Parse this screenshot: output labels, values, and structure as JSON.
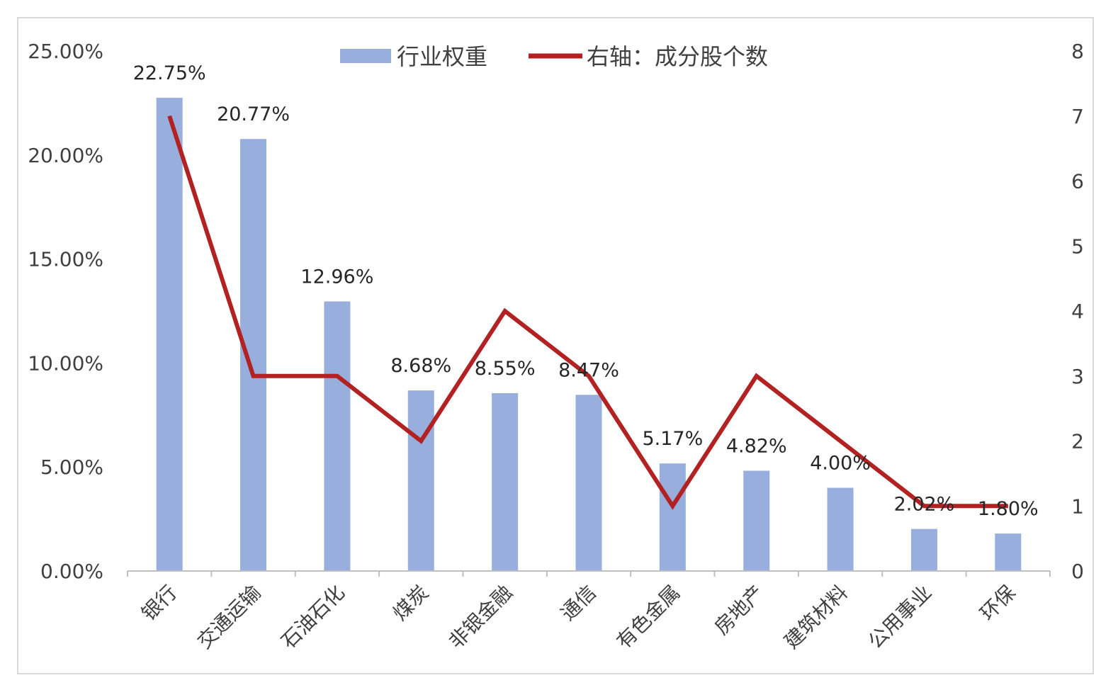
{
  "chart_data": {
    "type": "bar",
    "categories": [
      "银行",
      "交通运输",
      "石油石化",
      "煤炭",
      "非银金融",
      "通信",
      "有色金属",
      "房地产",
      "建筑材料",
      "公用事业",
      "环保"
    ],
    "series": [
      {
        "name": "行业权重",
        "type": "bar",
        "axis": "left",
        "color": "#98aedd",
        "values": [
          22.75,
          20.77,
          12.96,
          8.68,
          8.55,
          8.47,
          5.17,
          4.82,
          4.0,
          2.02,
          1.8
        ],
        "value_labels": [
          "22.75%",
          "20.77%",
          "12.96%",
          "8.68%",
          "8.55%",
          "8.47%",
          "5.17%",
          "4.82%",
          "4.00%",
          "2.02%",
          "1.80%"
        ]
      },
      {
        "name": "右轴：成分股个数",
        "type": "line",
        "axis": "right",
        "color": "#b22222",
        "values": [
          7,
          3,
          3,
          2,
          4,
          3,
          1,
          3,
          2,
          1,
          1
        ]
      }
    ],
    "y_left": {
      "ylim": [
        0,
        25
      ],
      "ticks": [
        0,
        5,
        10,
        15,
        20,
        25
      ],
      "tick_labels": [
        "0.00%",
        "5.00%",
        "10.00%",
        "15.00%",
        "20.00%",
        "25.00%"
      ]
    },
    "y_right": {
      "ylim": [
        0,
        8
      ],
      "ticks": [
        0,
        1,
        2,
        3,
        4,
        5,
        6,
        7,
        8
      ],
      "tick_labels": [
        "0",
        "1",
        "2",
        "3",
        "4",
        "5",
        "6",
        "7",
        "8"
      ]
    },
    "grid": false,
    "legend": "top-center"
  }
}
